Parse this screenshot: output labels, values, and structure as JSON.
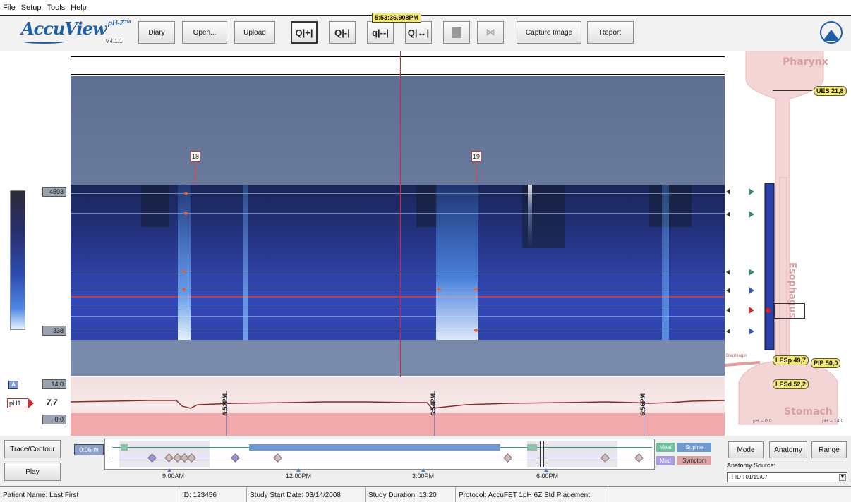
{
  "menu": [
    "File",
    "Setup",
    "Tools",
    "Help"
  ],
  "app": {
    "brand": "AccuView",
    "subbrand": "pH-Z™",
    "version": "v.4.1.1"
  },
  "toolbar": {
    "diary": "Diary",
    "open": "Open...",
    "upload": "Upload",
    "zoom_icons": [
      "Q|+|",
      "Q|-|",
      "q|--|",
      "Q|↔|"
    ],
    "capture": "Capture Image",
    "report": "Report"
  },
  "cursor": {
    "timestamp": "5:53:36.908PM"
  },
  "events": [
    {
      "label": "18"
    },
    {
      "label": "19"
    }
  ],
  "scale": {
    "max": "4593",
    "min": "338"
  },
  "ph_panel": {
    "a_label": "A",
    "scale_max": "14,0",
    "scale_min": "0,0",
    "channel": "pH1",
    "value": "7,7"
  },
  "ph_ticks": [
    "6:52PM",
    "6:54PM",
    "6:56PM"
  ],
  "anatomy": {
    "pharynx": "Pharynx",
    "esophagus": "Esophagus",
    "stomach": "Stomach",
    "diaphragm": "Diaphragm",
    "ues": "UES 21,8",
    "lesp": "LESp 49,7",
    "pip": "PIP 50,0",
    "lesd": "LESd 52,2",
    "ph_left": "pH = 0.0",
    "ph_right": "pH = 14.0"
  },
  "bottom": {
    "trace_contour": "Trace/Contour",
    "play": "Play",
    "zoom": "0:06 m",
    "times": [
      "9:00AM",
      "12:00PM",
      "3:00PM",
      "6:00PM"
    ],
    "legend": [
      "Meal",
      "Supine",
      "Med",
      "Symptom"
    ]
  },
  "anatomy_controls": {
    "mode": "Mode",
    "anatomy": "Anatomy",
    "range": "Range",
    "source_label": "Anatomy Source:",
    "source_value": ". : ID : 01/19/07"
  },
  "status": {
    "patient": "Patient Name: Last,First",
    "id": "ID: 123456",
    "start": "Study Start Date: 03/14/2008",
    "duration": "Study Duration: 13:20",
    "protocol": "Protocol: AccuFET 1pH 6Z Std Placement"
  },
  "colors": {
    "brand": "#1f5fa8",
    "cursor": "#d32a2a",
    "highlight": "#f7e96c"
  }
}
